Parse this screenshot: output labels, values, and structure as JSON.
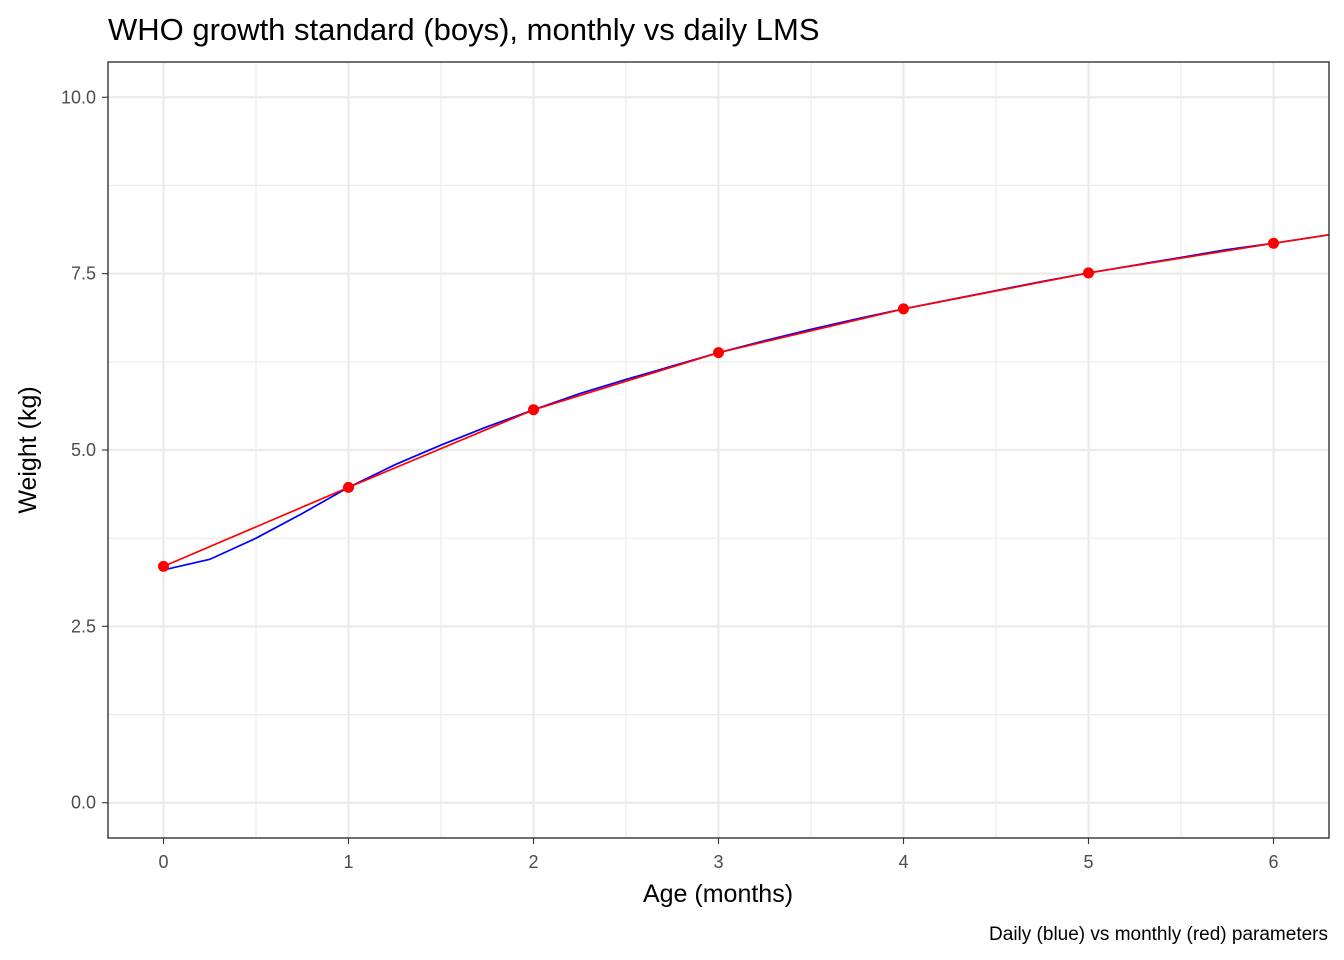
{
  "chart_data": {
    "type": "line",
    "title": "WHO growth standard (boys), monthly vs daily LMS",
    "xlabel": "Age (months)",
    "ylabel": "Weight (kg)",
    "caption": "Daily (blue) vs monthly (red) parameters",
    "xlim": [
      -0.3,
      6.3
    ],
    "ylim": [
      -0.5,
      10.5
    ],
    "x_ticks": [
      0,
      1,
      2,
      3,
      4,
      5,
      6
    ],
    "x_tick_labels": [
      "0",
      "1",
      "2",
      "3",
      "4",
      "5",
      "6"
    ],
    "y_ticks": [
      0,
      2.5,
      5,
      7.5,
      10
    ],
    "y_tick_labels": [
      "0.0",
      "2.5",
      "5.0",
      "7.5",
      "10.0"
    ],
    "grid": true,
    "series": [
      {
        "color": "#0000ff",
        "style": "line",
        "x": [
          0,
          0.25,
          0.5,
          0.75,
          1,
          1.25,
          1.5,
          1.75,
          2,
          2.25,
          2.5,
          2.75,
          3,
          3.25,
          3.5,
          3.75,
          4,
          4.25,
          4.5,
          4.75,
          5,
          5.25,
          5.5,
          5.75,
          6,
          6.3
        ],
        "values": [
          3.3,
          3.45,
          3.75,
          4.1,
          4.47,
          4.79,
          5.07,
          5.33,
          5.57,
          5.8,
          6.0,
          6.19,
          6.38,
          6.55,
          6.71,
          6.86,
          7.0,
          7.13,
          7.26,
          7.39,
          7.51,
          7.62,
          7.73,
          7.84,
          7.93,
          8.05
        ]
      },
      {
        "color": "#ff0000",
        "style": "line+points",
        "x": [
          0,
          1,
          2,
          3,
          4,
          5,
          6,
          6.3
        ],
        "values": [
          3.35,
          4.47,
          5.57,
          6.38,
          7.0,
          7.51,
          7.93,
          8.05
        ],
        "points_x": [
          0,
          1,
          2,
          3,
          4,
          5,
          6
        ],
        "points": [
          3.35,
          4.47,
          5.57,
          6.38,
          7.0,
          7.51,
          7.93
        ]
      }
    ]
  }
}
